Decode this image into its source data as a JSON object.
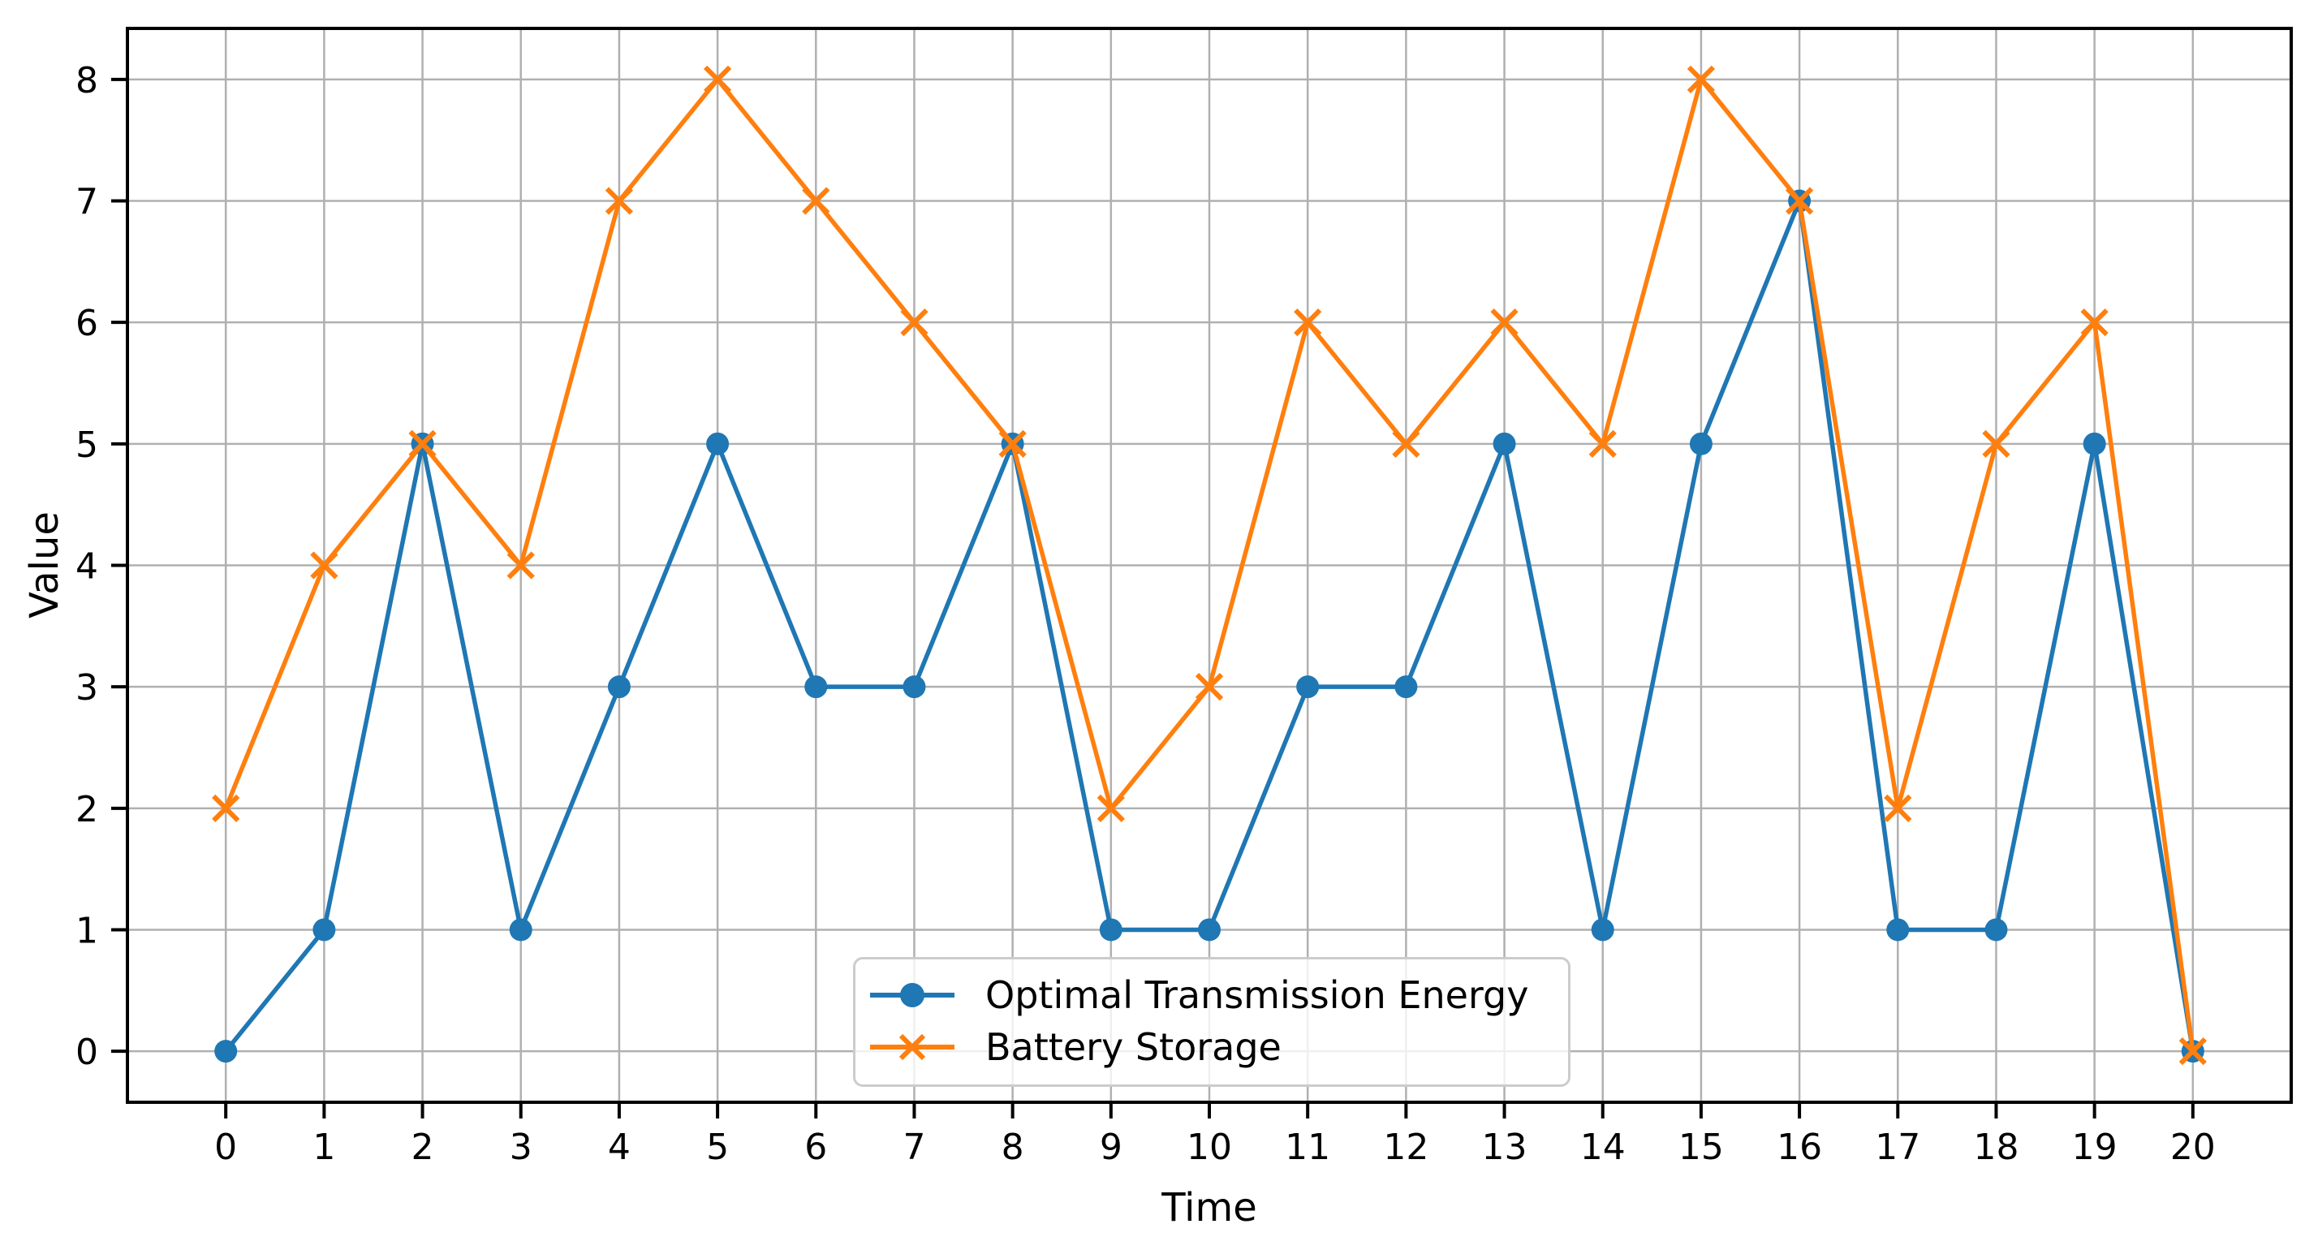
{
  "chart_data": {
    "type": "line",
    "title": "",
    "xlabel": "Time",
    "ylabel": "Value",
    "x": [
      0,
      1,
      2,
      3,
      4,
      5,
      6,
      7,
      8,
      9,
      10,
      11,
      12,
      13,
      14,
      15,
      16,
      17,
      18,
      19,
      20
    ],
    "series": [
      {
        "name": "Optimal Transmission Energy",
        "color": "#1f77b4",
        "marker": "circle",
        "values": [
          0,
          1,
          5,
          1,
          3,
          5,
          3,
          3,
          5,
          1,
          1,
          3,
          3,
          5,
          1,
          5,
          7,
          1,
          1,
          5,
          0
        ]
      },
      {
        "name": "Battery Storage",
        "color": "#ff7f0e",
        "marker": "x",
        "values": [
          2,
          4,
          5,
          4,
          7,
          8,
          7,
          6,
          5,
          2,
          3,
          6,
          5,
          6,
          5,
          8,
          7,
          2,
          5,
          6,
          0
        ]
      }
    ],
    "xlim": [
      -1,
      21
    ],
    "ylim": [
      -0.42,
      8.42
    ],
    "xticks": [
      0,
      1,
      2,
      3,
      4,
      5,
      6,
      7,
      8,
      9,
      10,
      11,
      12,
      13,
      14,
      15,
      16,
      17,
      18,
      19,
      20
    ],
    "yticks": [
      0,
      1,
      2,
      3,
      4,
      5,
      6,
      7,
      8
    ],
    "grid": true,
    "legend_position": "lower center, inside axes"
  },
  "axes": {
    "xlabel": "Time",
    "ylabel": "Value",
    "grid_color": "#b0b0b0",
    "spine_color": "#000000",
    "tick_label_color": "#000000"
  },
  "legend": {
    "entries": [
      {
        "label": "Optimal Transmission Energy",
        "color": "#1f77b4",
        "marker": "circle"
      },
      {
        "label": "Battery Storage",
        "color": "#ff7f0e",
        "marker": "x"
      }
    ]
  }
}
